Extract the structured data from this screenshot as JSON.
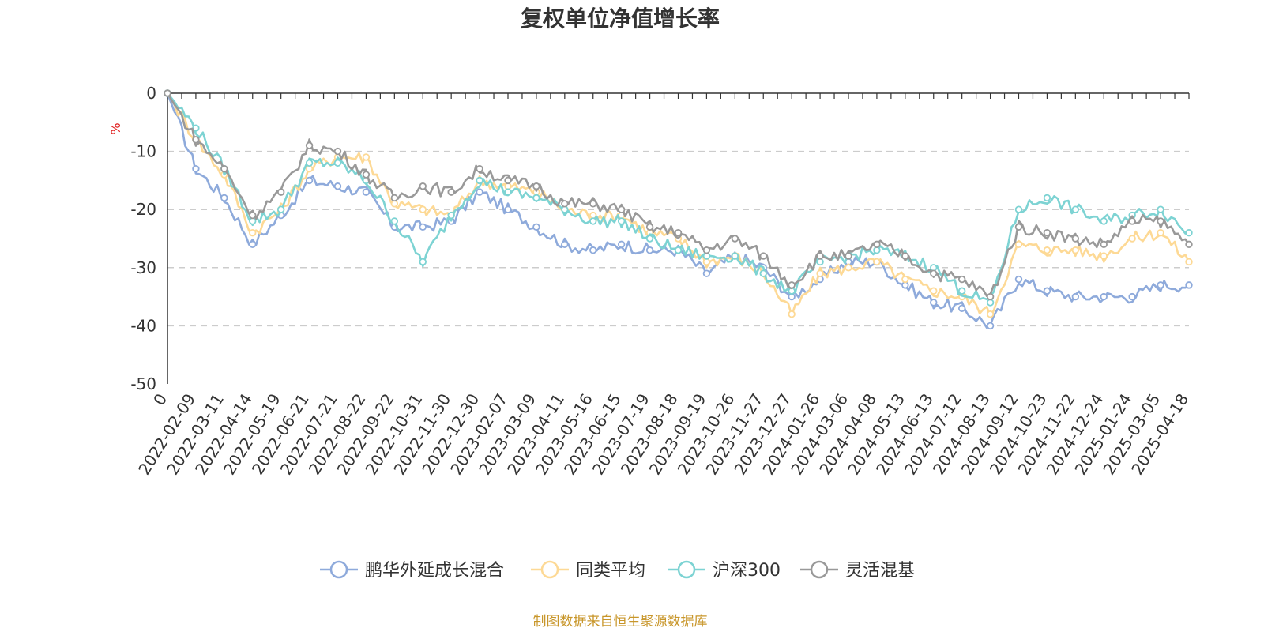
{
  "chart_data": {
    "type": "line",
    "title": "复权单位净值增长率",
    "ylabel": "%",
    "ylim": [
      -50,
      0
    ],
    "yticks": [
      0,
      -10,
      -20,
      -30,
      -40,
      -50
    ],
    "grid": true,
    "legend_position": "bottom",
    "x_start_label": "0",
    "x_tick_labels": [
      "2022-02-09",
      "2022-03-11",
      "2022-04-14",
      "2022-05-19",
      "2022-06-21",
      "2022-07-21",
      "2022-08-22",
      "2022-09-22",
      "2022-10-31",
      "2022-11-30",
      "2022-12-30",
      "2023-02-07",
      "2023-03-09",
      "2023-04-11",
      "2023-05-16",
      "2023-06-15",
      "2023-07-19",
      "2023-08-18",
      "2023-09-19",
      "2023-10-26",
      "2023-11-27",
      "2023-12-27",
      "2024-01-26",
      "2024-03-06",
      "2024-04-08",
      "2024-05-13",
      "2024-06-13",
      "2024-07-12",
      "2024-08-13",
      "2024-09-12",
      "2024-10-23",
      "2024-11-22",
      "2024-12-24",
      "2025-01-24",
      "2025-03-05",
      "2025-04-18"
    ],
    "x": [
      "0",
      "2022-02-09",
      "2022-03-11",
      "2022-04-14",
      "2022-05-19",
      "2022-06-21",
      "2022-07-21",
      "2022-08-22",
      "2022-09-22",
      "2022-10-31",
      "2022-11-30",
      "2022-12-30",
      "2023-02-07",
      "2023-03-09",
      "2023-04-11",
      "2023-05-16",
      "2023-06-15",
      "2023-07-19",
      "2023-08-18",
      "2023-09-19",
      "2023-10-26",
      "2023-11-27",
      "2023-12-27",
      "2024-01-26",
      "2024-03-06",
      "2024-04-08",
      "2024-05-13",
      "2024-06-13",
      "2024-07-12",
      "2024-08-13",
      "2024-09-12",
      "2024-10-23",
      "2024-11-22",
      "2024-12-24",
      "2025-01-24",
      "2025-03-05",
      "2025-04-18"
    ],
    "series": [
      {
        "name": "鹏华外延成长混合",
        "color": "#8eaadb",
        "values": [
          0,
          -13,
          -18,
          -26,
          -21,
          -15,
          -16,
          -17,
          -23,
          -23,
          -22,
          -17,
          -20,
          -23,
          -26,
          -27,
          -26,
          -27,
          -27,
          -31,
          -28,
          -30,
          -35,
          -32,
          -29,
          -29,
          -33,
          -36,
          -37,
          -40,
          -32,
          -34,
          -35,
          -35,
          -35,
          -33,
          -33
        ]
      },
      {
        "name": "同类平均",
        "color": "#fdd995",
        "values": [
          0,
          -8,
          -14,
          -24,
          -20,
          -13,
          -11,
          -11,
          -19,
          -20,
          -21,
          -15,
          -16,
          -17,
          -20,
          -21,
          -21,
          -24,
          -25,
          -29,
          -28,
          -31,
          -38,
          -31,
          -30,
          -29,
          -32,
          -34,
          -35,
          -38,
          -26,
          -27,
          -27,
          -28,
          -25,
          -24,
          -29
        ]
      },
      {
        "name": "沪深300",
        "color": "#7dd3d3",
        "values": [
          0,
          -6,
          -13,
          -22,
          -20,
          -12,
          -12,
          -15,
          -22,
          -29,
          -21,
          -15,
          -17,
          -18,
          -20,
          -22,
          -22,
          -25,
          -27,
          -28,
          -28,
          -31,
          -34,
          -29,
          -28,
          -27,
          -28,
          -30,
          -34,
          -36,
          -20,
          -18,
          -20,
          -22,
          -21,
          -20,
          -24
        ]
      },
      {
        "name": "灵活混基",
        "color": "#999999",
        "values": [
          0,
          -8,
          -13,
          -21,
          -17,
          -9,
          -10,
          -14,
          -18,
          -16,
          -17,
          -13,
          -15,
          -16,
          -19,
          -19,
          -20,
          -23,
          -24,
          -27,
          -25,
          -28,
          -33,
          -28,
          -28,
          -26,
          -28,
          -31,
          -32,
          -35,
          -23,
          -24,
          -25,
          -26,
          -22,
          -22,
          -26
        ]
      }
    ]
  },
  "legend": [
    {
      "label": "鹏华外延成长混合",
      "color": "#8eaadb"
    },
    {
      "label": "同类平均",
      "color": "#fdd995"
    },
    {
      "label": "沪深300",
      "color": "#7dd3d3"
    },
    {
      "label": "灵活混基",
      "color": "#999999"
    }
  ],
  "footer": {
    "source": "制图数据来自恒生聚源数据库"
  }
}
